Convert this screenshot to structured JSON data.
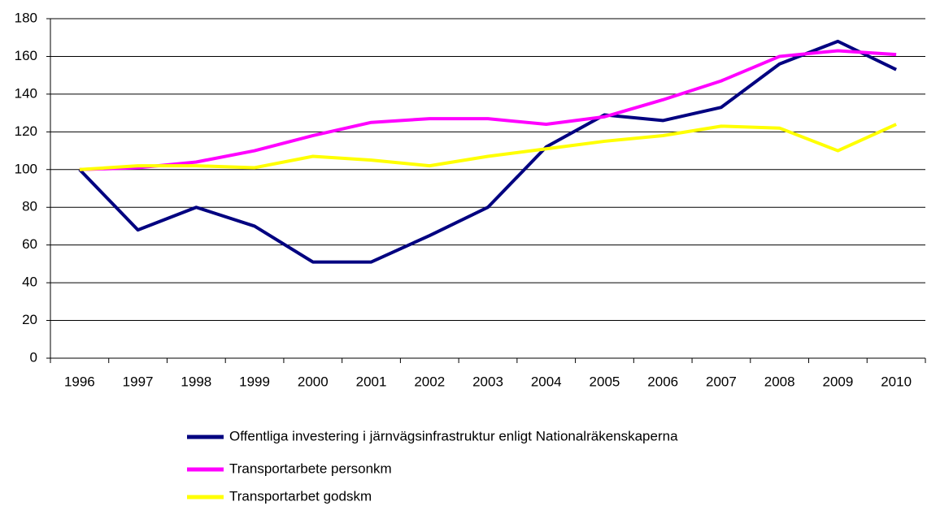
{
  "chart_data": {
    "type": "line",
    "categories": [
      "1996",
      "1997",
      "1998",
      "1999",
      "2000",
      "2001",
      "2002",
      "2003",
      "2004",
      "2005",
      "2006",
      "2007",
      "2008",
      "2009",
      "2010"
    ],
    "series": [
      {
        "name": "Offentliga investering i järnvägsinfrastruktur enligt Nationalräkenskaperna",
        "color": "#000080",
        "values": [
          100,
          68,
          80,
          70,
          51,
          51,
          65,
          80,
          112,
          129,
          126,
          133,
          156,
          168,
          153
        ]
      },
      {
        "name": "Transportarbete personkm",
        "color": "#ff00ff",
        "values": [
          100,
          101,
          104,
          110,
          118,
          125,
          127,
          127,
          124,
          128,
          137,
          147,
          160,
          163,
          161
        ]
      },
      {
        "name": "Transportarbet godskm",
        "color": "#ffff00",
        "values": [
          100,
          102,
          102,
          101,
          107,
          105,
          102,
          107,
          111,
          115,
          118,
          123,
          122,
          110,
          124
        ]
      }
    ],
    "ylim": [
      0,
      180
    ],
    "yticks": [
      0,
      20,
      40,
      60,
      80,
      100,
      120,
      140,
      160,
      180
    ],
    "grid": true
  }
}
